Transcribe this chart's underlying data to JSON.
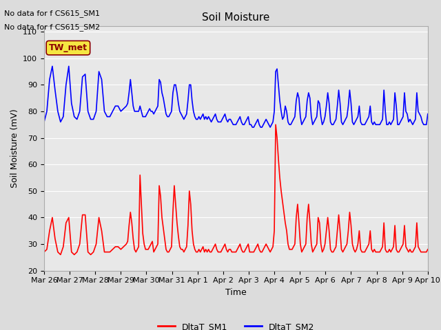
{
  "title": "Soil Moisture",
  "xlabel": "Time",
  "ylabel": "Soil Moisture (mV)",
  "ylim": [
    20,
    112
  ],
  "yticks": [
    20,
    30,
    40,
    50,
    60,
    70,
    80,
    90,
    100,
    110
  ],
  "text_lines": [
    "No data for f CS615_SM1",
    "No data for f CS615_SM2"
  ],
  "legend_label1": "DltaT_SM1",
  "legend_label2": "DltaT_SM2",
  "legend_text": "TW_met",
  "bg_color": "#dcdcdc",
  "plot_bg_color": "#e8e8e8",
  "line1_color": "#ff0000",
  "line2_color": "#0000ff",
  "x_tick_labels": [
    "Mar 26",
    "Mar 27",
    "Mar 28",
    "Mar 29",
    "Mar 30",
    "Mar 31",
    "Apr 1",
    "Apr 2",
    "Apr 3",
    "Apr 4",
    "Apr 5",
    "Apr 6",
    "Apr 7",
    "Apr 8",
    "Apr 9",
    "Apr 10"
  ],
  "sm1_x": [
    0,
    0.1,
    0.2,
    0.3,
    0.4,
    0.5,
    0.6,
    0.7,
    0.8,
    0.9,
    1.0,
    1.1,
    1.2,
    1.3,
    1.4,
    1.5,
    1.6,
    1.7,
    1.8,
    1.9,
    2.0,
    2.1,
    2.2,
    2.3,
    2.4,
    2.5,
    2.6,
    2.7,
    2.8,
    2.9,
    3.0,
    3.05,
    3.1,
    3.15,
    3.2,
    3.25,
    3.3,
    3.35,
    3.4,
    3.45,
    3.5,
    3.55,
    3.6,
    3.65,
    3.7,
    3.75,
    3.8,
    3.85,
    3.9,
    3.95,
    4.0,
    4.05,
    4.1,
    4.15,
    4.2,
    4.25,
    4.3,
    4.35,
    4.4,
    4.45,
    4.5,
    4.55,
    4.6,
    4.65,
    4.7,
    4.75,
    4.8,
    4.85,
    4.9,
    4.95,
    5.0,
    5.05,
    5.1,
    5.15,
    5.2,
    5.25,
    5.3,
    5.35,
    5.4,
    5.45,
    5.5,
    5.55,
    5.6,
    5.65,
    5.7,
    5.75,
    5.8,
    5.85,
    5.9,
    5.95,
    6.0,
    6.05,
    6.1,
    6.15,
    6.2,
    6.25,
    6.3,
    6.35,
    6.4,
    6.45,
    6.5,
    6.55,
    6.6,
    6.65,
    6.7,
    6.75,
    6.8,
    6.85,
    6.9,
    6.95,
    7.0,
    7.05,
    7.1,
    7.15,
    7.2,
    7.25,
    7.3,
    7.35,
    7.4,
    7.45,
    7.5,
    7.55,
    7.6,
    7.65,
    7.7,
    7.75,
    7.8,
    7.85,
    7.9,
    7.95,
    8.0,
    8.05,
    8.1,
    8.15,
    8.2,
    8.25,
    8.3,
    8.35,
    8.4,
    8.45,
    8.5,
    8.55,
    8.6,
    8.65,
    8.7,
    8.75,
    8.8,
    8.85,
    8.9,
    8.95,
    9.0,
    9.05,
    9.1,
    9.15,
    9.2,
    9.25,
    9.3,
    9.35,
    9.4,
    9.45,
    9.5,
    9.55,
    9.6,
    9.65,
    9.7,
    9.75,
    9.8,
    9.85,
    9.9,
    9.95,
    10.0,
    10.05,
    10.1,
    10.15,
    10.2,
    10.25,
    10.3,
    10.35,
    10.4,
    10.45,
    10.5,
    10.55,
    10.6,
    10.65,
    10.7,
    10.75,
    10.8,
    10.85,
    10.9,
    10.95,
    11.0,
    11.05,
    11.1,
    11.15,
    11.2,
    11.25,
    11.3,
    11.35,
    11.4,
    11.45,
    11.5,
    11.55,
    11.6,
    11.65,
    11.7,
    11.75,
    11.8,
    11.85,
    11.9,
    11.95,
    12.0,
    12.05,
    12.1,
    12.15,
    12.2,
    12.25,
    12.3,
    12.35,
    12.4,
    12.45,
    12.5,
    12.55,
    12.6,
    12.65,
    12.7,
    12.75,
    12.8,
    12.85,
    12.9,
    12.95,
    13.0,
    13.05,
    13.1,
    13.15,
    13.2,
    13.25,
    13.3,
    13.35,
    13.4,
    13.45,
    13.5,
    13.55,
    13.6,
    13.65,
    13.7,
    13.75,
    13.8,
    13.85,
    13.9,
    13.95,
    14.0
  ],
  "sm1_y": [
    27,
    28,
    35,
    40,
    32,
    27,
    26,
    29,
    38,
    40,
    27,
    26,
    27,
    30,
    41,
    41,
    27,
    26,
    27,
    30,
    40,
    35,
    27,
    27,
    27,
    28,
    29,
    29,
    28,
    29,
    30,
    31,
    37,
    42,
    38,
    32,
    28,
    27,
    28,
    29,
    56,
    45,
    34,
    30,
    28,
    28,
    28,
    29,
    30,
    31,
    27,
    28,
    29,
    30,
    52,
    48,
    40,
    36,
    32,
    28,
    27,
    27,
    28,
    29,
    42,
    52,
    45,
    38,
    33,
    29,
    28,
    28,
    27,
    28,
    29,
    37,
    50,
    45,
    35,
    30,
    28,
    27,
    27,
    28,
    27,
    28,
    29,
    27,
    28,
    27,
    28,
    27,
    27,
    28,
    29,
    30,
    28,
    27,
    27,
    27,
    28,
    29,
    30,
    28,
    27,
    28,
    28,
    27,
    27,
    27,
    27,
    28,
    29,
    30,
    28,
    27,
    27,
    28,
    29,
    30,
    27,
    27,
    27,
    27,
    28,
    29,
    30,
    28,
    27,
    27,
    28,
    29,
    30,
    29,
    28,
    27,
    28,
    29,
    35,
    75,
    70,
    62,
    55,
    50,
    46,
    42,
    38,
    35,
    30,
    28,
    28,
    28,
    29,
    30,
    40,
    45,
    38,
    30,
    27,
    28,
    29,
    30,
    40,
    45,
    38,
    30,
    27,
    28,
    29,
    30,
    40,
    38,
    30,
    27,
    28,
    30,
    35,
    40,
    35,
    28,
    27,
    27,
    28,
    29,
    35,
    41,
    35,
    28,
    27,
    28,
    29,
    30,
    35,
    42,
    37,
    30,
    28,
    27,
    28,
    30,
    35,
    28,
    27,
    27,
    27,
    28,
    29,
    30,
    35,
    28,
    27,
    28,
    27,
    27,
    27,
    27,
    28,
    29,
    38,
    28,
    27,
    27,
    28,
    27,
    28,
    29,
    37,
    28,
    27,
    27,
    28,
    29,
    30,
    37,
    29,
    28,
    27,
    28,
    27,
    27,
    28,
    29,
    38,
    29,
    28,
    27,
    27,
    27,
    27,
    27,
    28
  ],
  "sm2_x": [
    0,
    0.1,
    0.2,
    0.3,
    0.4,
    0.5,
    0.6,
    0.7,
    0.8,
    0.9,
    1.0,
    1.1,
    1.2,
    1.3,
    1.4,
    1.5,
    1.6,
    1.7,
    1.8,
    1.9,
    2.0,
    2.1,
    2.2,
    2.3,
    2.4,
    2.5,
    2.6,
    2.7,
    2.8,
    2.9,
    3.0,
    3.05,
    3.1,
    3.15,
    3.2,
    3.25,
    3.3,
    3.35,
    3.4,
    3.45,
    3.5,
    3.55,
    3.6,
    3.65,
    3.7,
    3.75,
    3.8,
    3.85,
    3.9,
    3.95,
    4.0,
    4.05,
    4.1,
    4.15,
    4.2,
    4.25,
    4.3,
    4.35,
    4.4,
    4.45,
    4.5,
    4.55,
    4.6,
    4.65,
    4.7,
    4.75,
    4.8,
    4.85,
    4.9,
    4.95,
    5.0,
    5.05,
    5.1,
    5.15,
    5.2,
    5.25,
    5.3,
    5.35,
    5.4,
    5.45,
    5.5,
    5.55,
    5.6,
    5.65,
    5.7,
    5.75,
    5.8,
    5.85,
    5.9,
    5.95,
    6.0,
    6.05,
    6.1,
    6.15,
    6.2,
    6.25,
    6.3,
    6.35,
    6.4,
    6.45,
    6.5,
    6.55,
    6.6,
    6.65,
    6.7,
    6.75,
    6.8,
    6.85,
    6.9,
    6.95,
    7.0,
    7.05,
    7.1,
    7.15,
    7.2,
    7.25,
    7.3,
    7.35,
    7.4,
    7.45,
    7.5,
    7.55,
    7.6,
    7.65,
    7.7,
    7.75,
    7.8,
    7.85,
    7.9,
    7.95,
    8.0,
    8.05,
    8.1,
    8.15,
    8.2,
    8.25,
    8.3,
    8.35,
    8.4,
    8.45,
    8.5,
    8.55,
    8.6,
    8.65,
    8.7,
    8.75,
    8.8,
    8.85,
    8.9,
    8.95,
    9.0,
    9.05,
    9.1,
    9.15,
    9.2,
    9.25,
    9.3,
    9.35,
    9.4,
    9.45,
    9.5,
    9.55,
    9.6,
    9.65,
    9.7,
    9.75,
    9.8,
    9.85,
    9.9,
    9.95,
    10.0,
    10.05,
    10.1,
    10.15,
    10.2,
    10.25,
    10.3,
    10.35,
    10.4,
    10.45,
    10.5,
    10.55,
    10.6,
    10.65,
    10.7,
    10.75,
    10.8,
    10.85,
    10.9,
    10.95,
    11.0,
    11.05,
    11.1,
    11.15,
    11.2,
    11.25,
    11.3,
    11.35,
    11.4,
    11.45,
    11.5,
    11.55,
    11.6,
    11.65,
    11.7,
    11.75,
    11.8,
    11.85,
    11.9,
    11.95,
    12.0,
    12.05,
    12.1,
    12.15,
    12.2,
    12.25,
    12.3,
    12.35,
    12.4,
    12.45,
    12.5,
    12.55,
    12.6,
    12.65,
    12.7,
    12.75,
    12.8,
    12.85,
    12.9,
    12.95,
    13.0,
    13.05,
    13.1,
    13.15,
    13.2,
    13.25,
    13.3,
    13.35,
    13.4,
    13.45,
    13.5,
    13.55,
    13.6,
    13.65,
    13.7,
    13.75,
    13.8,
    13.85,
    13.9,
    13.95,
    14.0
  ],
  "sm2_y": [
    76,
    80,
    92,
    97,
    88,
    80,
    76,
    78,
    90,
    97,
    83,
    78,
    77,
    80,
    93,
    94,
    80,
    77,
    77,
    80,
    95,
    92,
    80,
    78,
    78,
    80,
    82,
    82,
    80,
    81,
    82,
    83,
    87,
    92,
    87,
    82,
    80,
    80,
    80,
    80,
    82,
    80,
    78,
    78,
    78,
    79,
    80,
    81,
    80,
    80,
    79,
    80,
    81,
    82,
    92,
    91,
    87,
    85,
    82,
    79,
    78,
    78,
    79,
    80,
    87,
    90,
    90,
    87,
    83,
    80,
    79,
    78,
    77,
    78,
    79,
    84,
    90,
    90,
    84,
    80,
    78,
    77,
    77,
    78,
    77,
    78,
    79,
    77,
    78,
    77,
    78,
    77,
    76,
    77,
    78,
    79,
    77,
    76,
    76,
    76,
    77,
    78,
    79,
    77,
    76,
    77,
    77,
    76,
    75,
    75,
    75,
    76,
    77,
    78,
    76,
    75,
    75,
    76,
    77,
    78,
    75,
    75,
    74,
    74,
    75,
    76,
    77,
    75,
    74,
    74,
    75,
    76,
    77,
    76,
    75,
    74,
    75,
    76,
    80,
    95,
    96,
    90,
    84,
    80,
    77,
    78,
    82,
    80,
    76,
    75,
    75,
    76,
    77,
    78,
    84,
    87,
    85,
    78,
    75,
    76,
    77,
    78,
    84,
    87,
    85,
    78,
    75,
    76,
    77,
    78,
    84,
    83,
    78,
    75,
    76,
    78,
    82,
    87,
    83,
    76,
    75,
    75,
    76,
    77,
    82,
    88,
    83,
    76,
    75,
    76,
    77,
    78,
    82,
    88,
    83,
    76,
    75,
    76,
    77,
    78,
    82,
    76,
    75,
    75,
    75,
    76,
    77,
    78,
    82,
    76,
    75,
    76,
    75,
    75,
    75,
    75,
    76,
    77,
    88,
    80,
    75,
    75,
    76,
    75,
    76,
    77,
    87,
    82,
    75,
    75,
    76,
    77,
    78,
    87,
    80,
    79,
    76,
    77,
    76,
    75,
    76,
    77,
    87,
    80,
    79,
    78,
    76,
    75,
    75,
    75,
    79
  ]
}
